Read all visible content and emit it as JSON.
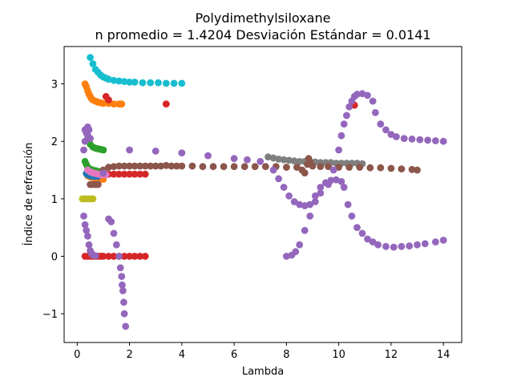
{
  "chart_data": {
    "type": "scatter",
    "title": "Polydimethylsiloxane",
    "subtitle": "n promedio = 1.4204  Desviación Estándar = 0.0141",
    "xlabel": "Lambda",
    "ylabel": "Índice de refracción",
    "xlim": [
      -0.5,
      14.7
    ],
    "ylim": [
      -1.5,
      3.65
    ],
    "x_ticks": [
      0,
      2,
      4,
      6,
      8,
      10,
      12,
      14
    ],
    "y_ticks": [
      -1,
      0,
      1,
      2,
      3
    ],
    "grid": false,
    "legend": "none",
    "series": [
      {
        "color": "#17becf",
        "points": [
          [
            0.5,
            3.46
          ],
          [
            0.6,
            3.35
          ],
          [
            0.7,
            3.25
          ],
          [
            0.8,
            3.2
          ],
          [
            0.9,
            3.15
          ],
          [
            1.0,
            3.12
          ],
          [
            1.1,
            3.1
          ],
          [
            1.2,
            3.08
          ],
          [
            1.4,
            3.06
          ],
          [
            1.6,
            3.05
          ],
          [
            1.8,
            3.04
          ],
          [
            2.0,
            3.03
          ],
          [
            2.2,
            3.03
          ],
          [
            2.5,
            3.02
          ],
          [
            2.8,
            3.02
          ],
          [
            3.1,
            3.02
          ],
          [
            3.4,
            3.01
          ],
          [
            3.7,
            3.01
          ],
          [
            4.0,
            3.01
          ]
        ]
      },
      {
        "color": "#ff7f0e",
        "points": [
          [
            0.3,
            3.0
          ],
          [
            0.35,
            2.95
          ],
          [
            0.4,
            2.88
          ],
          [
            0.45,
            2.82
          ],
          [
            0.5,
            2.78
          ],
          [
            0.55,
            2.74
          ],
          [
            0.6,
            2.72
          ],
          [
            0.7,
            2.7
          ],
          [
            0.8,
            2.68
          ],
          [
            0.9,
            2.67
          ],
          [
            1.0,
            2.66
          ],
          [
            1.2,
            2.66
          ],
          [
            1.4,
            2.65
          ],
          [
            1.6,
            2.65
          ],
          [
            1.7,
            2.65
          ],
          [
            0.4,
            1.4
          ],
          [
            0.5,
            1.38
          ],
          [
            0.6,
            1.37
          ],
          [
            0.7,
            1.36
          ],
          [
            0.8,
            1.35
          ],
          [
            0.9,
            1.35
          ],
          [
            1.0,
            1.34
          ]
        ]
      },
      {
        "color": "#d62728",
        "points": [
          [
            1.1,
            2.78
          ],
          [
            1.2,
            2.72
          ],
          [
            3.4,
            2.65
          ],
          [
            10.6,
            2.63
          ],
          [
            0.3,
            0.0
          ],
          [
            0.4,
            0.0
          ],
          [
            0.5,
            0.0
          ],
          [
            0.6,
            0.0
          ],
          [
            0.7,
            0.0
          ],
          [
            0.8,
            0.0
          ],
          [
            0.9,
            0.0
          ],
          [
            1.0,
            0.0
          ],
          [
            1.2,
            0.0
          ],
          [
            1.4,
            0.0
          ],
          [
            1.6,
            0.0
          ],
          [
            1.8,
            0.0
          ],
          [
            2.0,
            0.0
          ],
          [
            2.2,
            0.0
          ],
          [
            2.4,
            0.0
          ],
          [
            2.6,
            0.0
          ],
          [
            0.5,
            1.45
          ],
          [
            0.8,
            1.44
          ],
          [
            1.0,
            1.44
          ],
          [
            1.2,
            1.43
          ],
          [
            1.4,
            1.43
          ],
          [
            1.6,
            1.43
          ],
          [
            1.8,
            1.43
          ],
          [
            2.0,
            1.43
          ],
          [
            2.2,
            1.43
          ],
          [
            2.4,
            1.43
          ],
          [
            2.6,
            1.43
          ]
        ]
      },
      {
        "color": "#2ca02c",
        "points": [
          [
            0.3,
            1.65
          ],
          [
            0.35,
            1.6
          ],
          [
            0.4,
            1.55
          ],
          [
            0.5,
            1.52
          ],
          [
            0.6,
            1.5
          ],
          [
            0.7,
            1.49
          ],
          [
            0.8,
            1.48
          ],
          [
            1.0,
            1.48
          ],
          [
            0.5,
            1.95
          ],
          [
            0.6,
            1.9
          ],
          [
            0.7,
            1.88
          ],
          [
            0.8,
            1.87
          ],
          [
            0.9,
            1.86
          ],
          [
            1.0,
            1.85
          ]
        ]
      },
      {
        "color": "#1f77b4",
        "points": [
          [
            0.35,
            1.44
          ],
          [
            0.4,
            1.42
          ],
          [
            0.45,
            1.41
          ],
          [
            0.5,
            1.4
          ],
          [
            0.55,
            1.4
          ],
          [
            0.6,
            1.39
          ],
          [
            0.7,
            1.39
          ],
          [
            0.8,
            1.39
          ]
        ]
      },
      {
        "color": "#bcbd22",
        "points": [
          [
            0.2,
            1.0
          ],
          [
            0.3,
            1.0
          ],
          [
            0.4,
            1.0
          ],
          [
            0.5,
            1.0
          ],
          [
            0.6,
            1.0
          ]
        ]
      },
      {
        "color": "#e377c2",
        "points": [
          [
            0.4,
            1.5
          ],
          [
            0.5,
            1.47
          ],
          [
            0.6,
            1.45
          ],
          [
            0.7,
            1.44
          ],
          [
            0.8,
            1.43
          ],
          [
            0.9,
            1.42
          ],
          [
            1.0,
            1.42
          ],
          [
            1.1,
            1.42
          ]
        ]
      },
      {
        "color": "#7f7f7f",
        "points": [
          [
            7.3,
            1.73
          ],
          [
            7.5,
            1.71
          ],
          [
            7.7,
            1.69
          ],
          [
            7.9,
            1.68
          ],
          [
            8.1,
            1.67
          ],
          [
            8.3,
            1.66
          ],
          [
            8.5,
            1.65
          ],
          [
            8.7,
            1.65
          ],
          [
            8.9,
            1.64
          ],
          [
            9.1,
            1.64
          ],
          [
            9.3,
            1.63
          ],
          [
            9.5,
            1.63
          ],
          [
            9.7,
            1.63
          ],
          [
            9.9,
            1.62
          ],
          [
            10.1,
            1.62
          ],
          [
            10.3,
            1.62
          ],
          [
            10.5,
            1.62
          ],
          [
            10.7,
            1.62
          ],
          [
            10.9,
            1.61
          ]
        ]
      },
      {
        "color": "#8c564b",
        "points": [
          [
            0.5,
            1.25
          ],
          [
            0.6,
            1.25
          ],
          [
            0.7,
            1.25
          ],
          [
            0.8,
            1.25
          ],
          [
            1.0,
            1.5
          ],
          [
            1.2,
            1.55
          ],
          [
            1.4,
            1.56
          ],
          [
            1.6,
            1.57
          ],
          [
            1.8,
            1.57
          ],
          [
            2.0,
            1.57
          ],
          [
            2.2,
            1.57
          ],
          [
            2.4,
            1.57
          ],
          [
            2.6,
            1.57
          ],
          [
            2.8,
            1.57
          ],
          [
            3.0,
            1.57
          ],
          [
            3.2,
            1.57
          ],
          [
            3.4,
            1.58
          ],
          [
            3.6,
            1.57
          ],
          [
            3.8,
            1.57
          ],
          [
            4.0,
            1.57
          ],
          [
            4.4,
            1.57
          ],
          [
            4.8,
            1.56
          ],
          [
            5.2,
            1.56
          ],
          [
            5.6,
            1.56
          ],
          [
            6.0,
            1.56
          ],
          [
            6.4,
            1.56
          ],
          [
            6.8,
            1.56
          ],
          [
            7.2,
            1.56
          ],
          [
            7.6,
            1.56
          ],
          [
            8.0,
            1.55
          ],
          [
            8.4,
            1.55
          ],
          [
            8.6,
            1.5
          ],
          [
            8.7,
            1.45
          ],
          [
            8.8,
            1.6
          ],
          [
            8.85,
            1.7
          ],
          [
            8.9,
            1.65
          ],
          [
            9.0,
            1.57
          ],
          [
            9.3,
            1.56
          ],
          [
            9.6,
            1.56
          ],
          [
            10.0,
            1.55
          ],
          [
            10.4,
            1.55
          ],
          [
            10.8,
            1.55
          ],
          [
            11.2,
            1.54
          ],
          [
            11.6,
            1.54
          ],
          [
            12.0,
            1.53
          ],
          [
            12.4,
            1.52
          ],
          [
            12.8,
            1.51
          ],
          [
            13.0,
            1.5
          ]
        ]
      },
      {
        "color": "#9467bd",
        "points": [
          [
            0.25,
            1.85
          ],
          [
            0.3,
            2.0
          ],
          [
            0.35,
            2.15
          ],
          [
            0.4,
            2.25
          ],
          [
            0.45,
            2.2
          ],
          [
            0.5,
            2.05
          ],
          [
            1.0,
            1.45
          ],
          [
            0.3,
            2.2
          ],
          [
            0.4,
            2.1
          ],
          [
            0.25,
            0.7
          ],
          [
            0.3,
            0.55
          ],
          [
            0.35,
            0.45
          ],
          [
            0.4,
            0.35
          ],
          [
            0.45,
            0.2
          ],
          [
            0.5,
            0.1
          ],
          [
            0.55,
            0.05
          ],
          [
            0.6,
            0.02
          ],
          [
            0.7,
            0.01
          ],
          [
            1.2,
            0.65
          ],
          [
            1.3,
            0.6
          ],
          [
            1.4,
            0.4
          ],
          [
            1.5,
            0.2
          ],
          [
            1.6,
            0.0
          ],
          [
            1.65,
            -0.2
          ],
          [
            1.7,
            -0.35
          ],
          [
            1.72,
            -0.5
          ],
          [
            1.75,
            -0.6
          ],
          [
            1.78,
            -0.8
          ],
          [
            1.8,
            -1.0
          ],
          [
            1.85,
            -1.22
          ],
          [
            2.0,
            1.85
          ],
          [
            3.0,
            1.83
          ],
          [
            4.0,
            1.8
          ],
          [
            5.0,
            1.75
          ],
          [
            6.0,
            1.7
          ],
          [
            6.5,
            1.68
          ],
          [
            7.0,
            1.65
          ],
          [
            7.5,
            1.5
          ],
          [
            7.7,
            1.35
          ],
          [
            7.9,
            1.2
          ],
          [
            8.1,
            1.05
          ],
          [
            8.3,
            0.95
          ],
          [
            8.5,
            0.9
          ],
          [
            8.7,
            0.88
          ],
          [
            8.9,
            0.9
          ],
          [
            9.1,
            1.05
          ],
          [
            9.3,
            1.2
          ],
          [
            9.5,
            1.28
          ],
          [
            9.7,
            1.32
          ],
          [
            9.9,
            1.33
          ],
          [
            10.1,
            1.3
          ],
          [
            10.2,
            1.2
          ],
          [
            10.35,
            0.9
          ],
          [
            10.5,
            0.7
          ],
          [
            10.7,
            0.5
          ],
          [
            10.9,
            0.4
          ],
          [
            11.1,
            0.3
          ],
          [
            11.3,
            0.25
          ],
          [
            11.5,
            0.2
          ],
          [
            11.8,
            0.17
          ],
          [
            12.1,
            0.16
          ],
          [
            12.4,
            0.17
          ],
          [
            12.7,
            0.18
          ],
          [
            13.0,
            0.2
          ],
          [
            13.3,
            0.22
          ],
          [
            13.7,
            0.25
          ],
          [
            14.0,
            0.28
          ],
          [
            8.0,
            0.0
          ],
          [
            8.2,
            0.02
          ],
          [
            8.35,
            0.08
          ],
          [
            8.5,
            0.2
          ],
          [
            8.7,
            0.45
          ],
          [
            8.9,
            0.7
          ],
          [
            9.1,
            0.95
          ],
          [
            9.3,
            1.1
          ],
          [
            9.6,
            1.25
          ],
          [
            9.8,
            1.5
          ],
          [
            10.0,
            1.85
          ],
          [
            10.1,
            2.1
          ],
          [
            10.2,
            2.3
          ],
          [
            10.3,
            2.45
          ],
          [
            10.4,
            2.6
          ],
          [
            10.5,
            2.7
          ],
          [
            10.6,
            2.78
          ],
          [
            10.7,
            2.82
          ],
          [
            10.9,
            2.83
          ],
          [
            11.1,
            2.8
          ],
          [
            11.3,
            2.7
          ],
          [
            11.4,
            2.5
          ],
          [
            11.6,
            2.3
          ],
          [
            11.8,
            2.2
          ],
          [
            12.0,
            2.12
          ],
          [
            12.2,
            2.08
          ],
          [
            12.5,
            2.05
          ],
          [
            12.8,
            2.04
          ],
          [
            13.1,
            2.03
          ],
          [
            13.4,
            2.02
          ],
          [
            13.7,
            2.01
          ],
          [
            14.0,
            2.0
          ]
        ]
      }
    ]
  }
}
